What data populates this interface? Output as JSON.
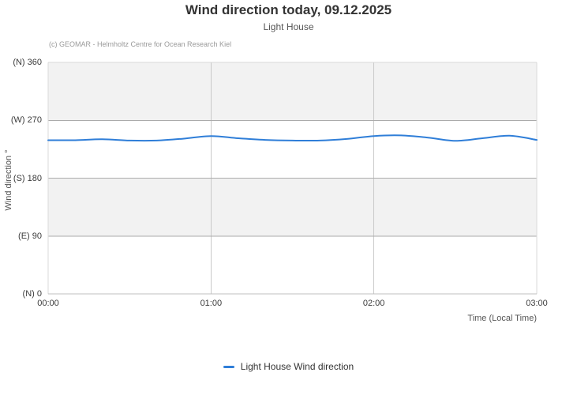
{
  "colors": {
    "series_blue": "#2f7ed8",
    "plot_band_gray": "#f2f2f2",
    "h_gridline": "#ababab",
    "v_gridline": "#c9c9c9",
    "plot_border": "#d9d9d9",
    "x_axis_line": "#bfbfbf"
  },
  "chart_data": {
    "type": "line",
    "title": "Wind direction today, 09.12.2025",
    "subtitle": "Light House",
    "credits": "(c) GEOMAR - Helmholtz Centre for Ocean Research Kiel",
    "xlabel": "Time (Local Time)",
    "ylabel": "Wind direction °",
    "x_ticks": [
      "00:00",
      "01:00",
      "02:00",
      "03:00"
    ],
    "y_ticks": [
      {
        "label": "(N) 360",
        "value": 360
      },
      {
        "label": "(W) 270",
        "value": 270
      },
      {
        "label": "(S) 180",
        "value": 180
      },
      {
        "label": "(E) 90",
        "value": 90
      },
      {
        "label": "(N) 0",
        "value": 0
      }
    ],
    "ylim": [
      0,
      360
    ],
    "xlim_minutes": [
      0,
      180
    ],
    "grid": true,
    "alternating_bands": "gray bands 270-360 and 90-180",
    "legend_position": "bottom-center",
    "series": [
      {
        "name": "Light House Wind direction",
        "color": "#2f7ed8",
        "x_minutes": [
          0,
          10,
          20,
          30,
          40,
          50,
          60,
          70,
          80,
          90,
          100,
          110,
          120,
          130,
          140,
          150,
          160,
          170,
          180
        ],
        "values": [
          239,
          239,
          240.5,
          238.5,
          238.5,
          241.5,
          245.5,
          242,
          239.5,
          238.5,
          238.5,
          241,
          245.5,
          246.5,
          243,
          238,
          242,
          246,
          239.5
        ]
      }
    ]
  }
}
